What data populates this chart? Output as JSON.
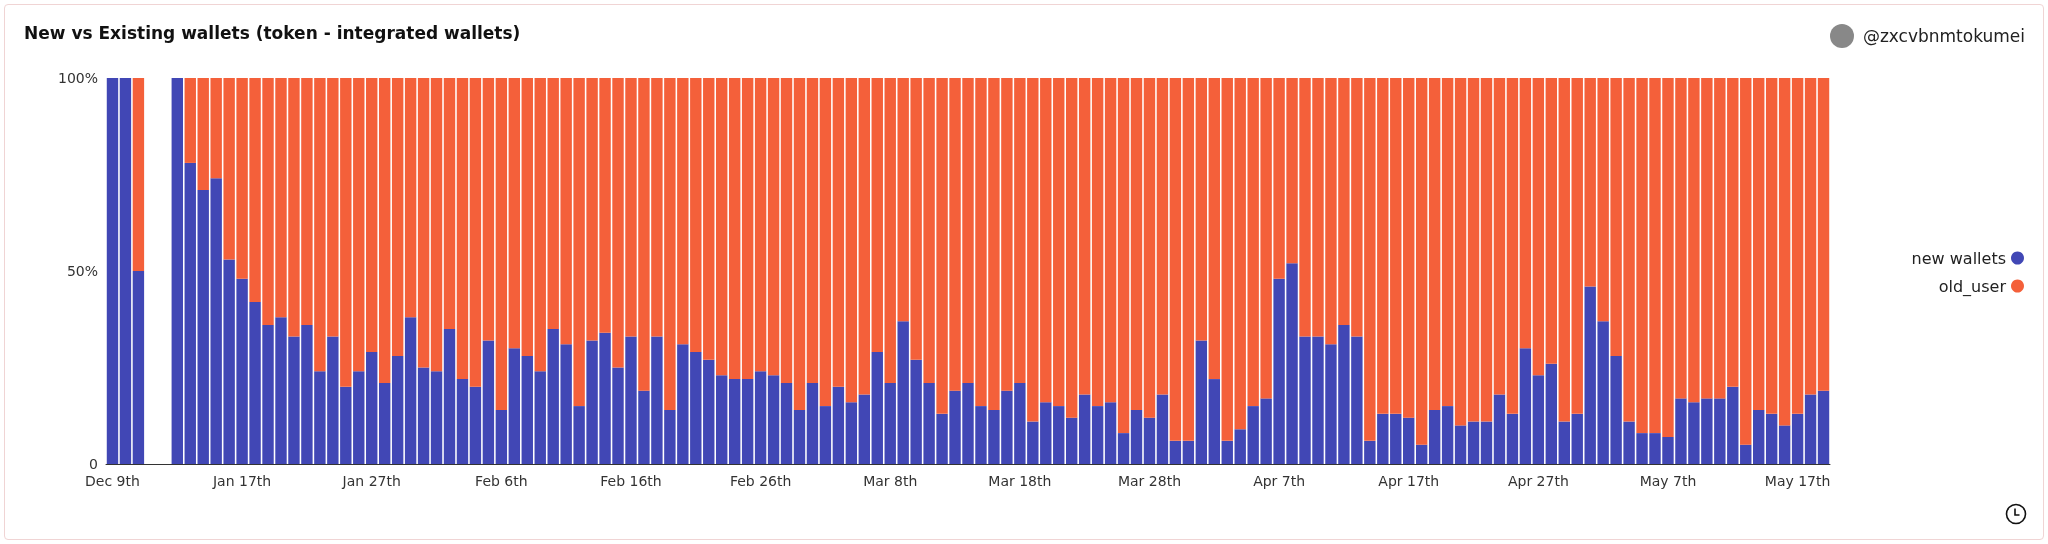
{
  "chart_data": {
    "type": "bar",
    "title": "New vs Existing wallets (token - integrated wallets)",
    "annotations": [
      "@zxcvbnmtokumei"
    ],
    "categories": [
      "Dec 9th",
      null,
      null,
      null,
      null,
      null,
      null,
      null,
      null,
      null,
      "Jan 17th",
      null,
      null,
      null,
      null,
      null,
      null,
      null,
      null,
      null,
      "Jan 27th",
      null,
      null,
      null,
      null,
      null,
      null,
      null,
      null,
      null,
      "Feb 6th",
      null,
      null,
      null,
      null,
      null,
      null,
      null,
      null,
      null,
      "Feb 16th",
      null,
      null,
      null,
      null,
      null,
      null,
      null,
      null,
      null,
      "Feb 26th",
      null,
      null,
      null,
      null,
      null,
      null,
      null,
      null,
      null,
      "Mar 8th",
      null,
      null,
      null,
      null,
      null,
      null,
      null,
      null,
      null,
      "Mar 18th",
      null,
      null,
      null,
      null,
      null,
      null,
      null,
      null,
      null,
      "Mar 28th",
      null,
      null,
      null,
      null,
      null,
      null,
      null,
      null,
      null,
      "Apr 7th",
      null,
      null,
      null,
      null,
      null,
      null,
      null,
      null,
      null,
      "Apr 17th",
      null,
      null,
      null,
      null,
      null,
      null,
      null,
      null,
      null,
      "Apr 27th",
      null,
      null,
      null,
      null,
      null,
      null,
      null,
      null,
      null,
      "May 7th",
      null,
      null,
      null,
      null,
      null,
      null,
      null,
      null,
      null,
      "May 17th",
      null,
      null
    ],
    "series": [
      {
        "name": "new wallets",
        "color": "#4147b5",
        "values": [
          100,
          100,
          50,
          null,
          null,
          100,
          78,
          71,
          74,
          53,
          48,
          42,
          36,
          38,
          33,
          36,
          24,
          33,
          20,
          24,
          29,
          21,
          28,
          38,
          25,
          24,
          35,
          22,
          20,
          32,
          14,
          30,
          28,
          24,
          35,
          31,
          15,
          32,
          34,
          25,
          33,
          19,
          33,
          14,
          31,
          29,
          27,
          23,
          22,
          22,
          24,
          23,
          21,
          14,
          21,
          15,
          20,
          16,
          18,
          29,
          21,
          37,
          27,
          21,
          13,
          19,
          21,
          15,
          14,
          19,
          21,
          11,
          16,
          15,
          12,
          18,
          15,
          16,
          8,
          14,
          12,
          18,
          6,
          6,
          32,
          22,
          6,
          9,
          15,
          17,
          48,
          52,
          33,
          33,
          31,
          36,
          33,
          6,
          13,
          13,
          12,
          5,
          14,
          15,
          10,
          11,
          11,
          18,
          13,
          30,
          23,
          26,
          11,
          13,
          46,
          37,
          28,
          11,
          8,
          8,
          7,
          17,
          16,
          17,
          17,
          20,
          5,
          14,
          13,
          10,
          13,
          18,
          19
        ]
      },
      {
        "name": "old_user",
        "color": "#f4603a",
        "values": [
          0,
          0,
          50,
          null,
          null,
          0,
          22,
          29,
          26,
          47,
          52,
          58,
          64,
          62,
          67,
          64,
          76,
          67,
          80,
          76,
          71,
          79,
          72,
          62,
          75,
          76,
          65,
          78,
          80,
          68,
          86,
          70,
          72,
          76,
          65,
          69,
          85,
          68,
          66,
          75,
          67,
          81,
          67,
          86,
          69,
          71,
          73,
          77,
          78,
          78,
          76,
          77,
          79,
          86,
          79,
          85,
          80,
          84,
          82,
          71,
          79,
          63,
          73,
          79,
          87,
          81,
          79,
          85,
          86,
          81,
          79,
          89,
          84,
          85,
          88,
          82,
          85,
          84,
          92,
          86,
          88,
          82,
          94,
          94,
          68,
          78,
          94,
          91,
          85,
          83,
          52,
          48,
          67,
          67,
          69,
          64,
          67,
          94,
          87,
          87,
          88,
          95,
          86,
          85,
          90,
          89,
          89,
          82,
          87,
          70,
          77,
          74,
          89,
          87,
          54,
          63,
          72,
          89,
          92,
          92,
          93,
          83,
          84,
          83,
          83,
          80,
          95,
          86,
          87,
          90,
          87,
          82,
          81
        ]
      }
    ],
    "stacked": true,
    "ylim": [
      0,
      100
    ],
    "yticks": [
      0,
      {
        "value": 50,
        "label": "50%"
      },
      {
        "value": 100,
        "label": "100%"
      }
    ],
    "grid": false,
    "legend": "right"
  }
}
